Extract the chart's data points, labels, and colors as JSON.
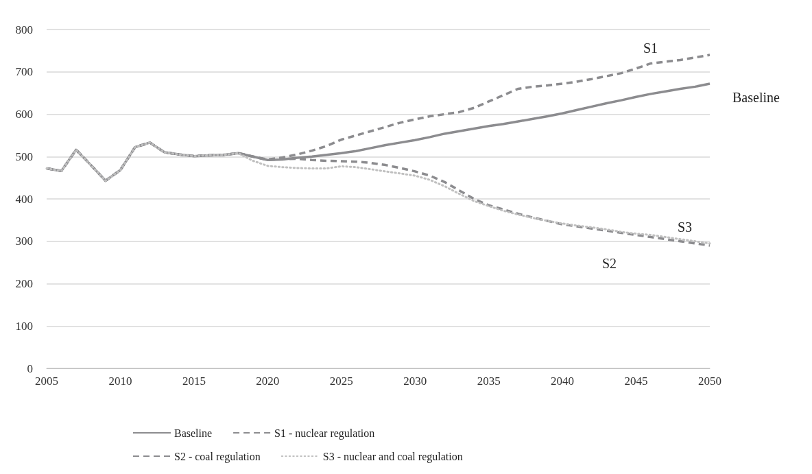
{
  "chart_data": {
    "type": "line",
    "x": [
      2005,
      2006,
      2007,
      2008,
      2009,
      2010,
      2011,
      2012,
      2013,
      2014,
      2015,
      2016,
      2017,
      2018,
      2019,
      2020,
      2021,
      2022,
      2023,
      2024,
      2025,
      2026,
      2027,
      2028,
      2029,
      2030,
      2031,
      2032,
      2033,
      2034,
      2035,
      2036,
      2037,
      2038,
      2039,
      2040,
      2041,
      2042,
      2043,
      2044,
      2045,
      2046,
      2047,
      2048,
      2049,
      2050
    ],
    "series": [
      {
        "name": "Baseline",
        "color": "#8c8c8f",
        "line_style": "solid",
        "values": [
          472,
          466,
          516,
          480,
          443,
          468,
          522,
          533,
          510,
          505,
          501,
          503,
          504,
          508,
          500,
          492,
          493,
          497,
          500,
          504,
          508,
          513,
          520,
          527,
          533,
          539,
          546,
          554,
          560,
          566,
          572,
          577,
          583,
          589,
          595,
          602,
          610,
          618,
          626,
          633,
          641,
          648,
          654,
          660,
          665,
          672
        ]
      },
      {
        "name": "S1 - nuclear regulation",
        "color": "#8c8c8f",
        "line_style": "dashed",
        "values": [
          472,
          466,
          516,
          480,
          443,
          468,
          522,
          533,
          510,
          505,
          501,
          503,
          504,
          508,
          500,
          493,
          498,
          505,
          514,
          525,
          540,
          550,
          560,
          570,
          580,
          588,
          595,
          600,
          605,
          615,
          630,
          645,
          660,
          665,
          668,
          672,
          677,
          683,
          690,
          697,
          708,
          720,
          724,
          728,
          734,
          740
        ]
      },
      {
        "name": "S2 - coal regulation",
        "color": "#8c8c8f",
        "line_style": "dashed",
        "values": [
          472,
          466,
          516,
          480,
          443,
          468,
          522,
          533,
          510,
          505,
          501,
          503,
          504,
          508,
          500,
          492,
          494,
          495,
          492,
          490,
          489,
          488,
          485,
          480,
          473,
          465,
          455,
          440,
          420,
          400,
          385,
          375,
          365,
          356,
          348,
          340,
          335,
          330,
          325,
          320,
          315,
          310,
          305,
          300,
          295,
          290
        ]
      },
      {
        "name": "S3 - nuclear and coal regulation",
        "color": "#c0c0c0",
        "line_style": "dotted",
        "values": [
          472,
          466,
          516,
          480,
          443,
          468,
          522,
          533,
          510,
          505,
          501,
          503,
          504,
          508,
          490,
          478,
          475,
          473,
          472,
          472,
          477,
          475,
          470,
          465,
          460,
          455,
          445,
          430,
          412,
          395,
          383,
          372,
          363,
          355,
          348,
          342,
          337,
          333,
          328,
          322,
          318,
          315,
          310,
          305,
          300,
          295
        ]
      }
    ],
    "xlim": [
      2005,
      2050
    ],
    "xticks": [
      2005,
      2010,
      2015,
      2020,
      2025,
      2030,
      2035,
      2040,
      2045,
      2050
    ],
    "ylim": [
      0,
      800
    ],
    "yticks": [
      0,
      100,
      200,
      300,
      400,
      500,
      600,
      700,
      800
    ],
    "grid": "y",
    "legend": "bottom",
    "marker": "none",
    "annotations": [
      "S1",
      "Baseline",
      "S3",
      "S2"
    ]
  }
}
